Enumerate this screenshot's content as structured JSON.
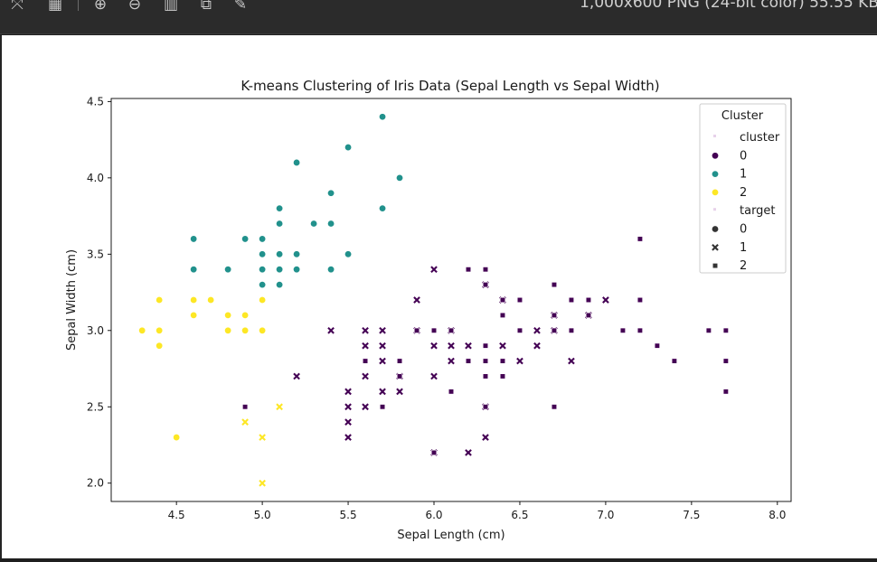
{
  "viewer": {
    "image_info": "1,000x600 PNG (24-bit color) 55.55 KB",
    "tools": [
      {
        "icon": "fit-window-icon",
        "glyph": "⤧"
      },
      {
        "icon": "grid-icon",
        "glyph": "▦"
      },
      {
        "icon": "zoom-in-icon",
        "glyph": "⊕"
      },
      {
        "icon": "zoom-out-icon",
        "glyph": "⊖"
      },
      {
        "icon": "histogram-icon",
        "glyph": "▥"
      },
      {
        "icon": "crop-icon",
        "glyph": "⧉"
      },
      {
        "icon": "edit-pencil-icon",
        "glyph": "✎"
      }
    ]
  },
  "chart_data": {
    "type": "scatter",
    "title": "K-means Clustering of Iris Data (Sepal Length vs Sepal Width)",
    "xlabel": "Sepal Length (cm)",
    "ylabel": "Sepal Width (cm)",
    "xlim": [
      4.12,
      8.08
    ],
    "ylim": [
      1.88,
      4.52
    ],
    "xticks": [
      "4.5",
      "5.0",
      "5.5",
      "6.0",
      "6.5",
      "7.0",
      "7.5",
      "8.0"
    ],
    "yticks": [
      "2.0",
      "2.5",
      "3.0",
      "3.5",
      "4.0",
      "4.5"
    ],
    "grid": false,
    "legend": {
      "title": "Cluster",
      "placement": "top-right",
      "entries": [
        {
          "kind": "header",
          "label": "cluster"
        },
        {
          "kind": "hue",
          "label": "0",
          "color": "#440154"
        },
        {
          "kind": "hue",
          "label": "1",
          "color": "#21918c"
        },
        {
          "kind": "hue",
          "label": "2",
          "color": "#fde725"
        },
        {
          "kind": "header",
          "label": "target"
        },
        {
          "kind": "style",
          "label": "0",
          "marker": "circle"
        },
        {
          "kind": "style",
          "label": "1",
          "marker": "x"
        },
        {
          "kind": "style",
          "label": "2",
          "marker": "square"
        }
      ]
    },
    "cluster_colors": {
      "0": "#440154",
      "1": "#21918c",
      "2": "#fde725"
    },
    "series": [
      {
        "cluster": 1,
        "target": 0,
        "points": [
          [
            5.7,
            4.4
          ],
          [
            5.5,
            4.2
          ],
          [
            5.2,
            4.1
          ],
          [
            5.8,
            4.0
          ],
          [
            5.4,
            3.9
          ],
          [
            5.1,
            3.8
          ],
          [
            5.7,
            3.8
          ],
          [
            5.1,
            3.7
          ],
          [
            5.3,
            3.7
          ],
          [
            5.4,
            3.7
          ],
          [
            4.6,
            3.6
          ],
          [
            4.9,
            3.6
          ],
          [
            5.0,
            3.6
          ],
          [
            5.0,
            3.5
          ],
          [
            5.1,
            3.5
          ],
          [
            5.2,
            3.5
          ],
          [
            5.5,
            3.5
          ],
          [
            4.6,
            3.4
          ],
          [
            4.8,
            3.4
          ],
          [
            5.0,
            3.4
          ],
          [
            5.1,
            3.4
          ],
          [
            5.2,
            3.4
          ],
          [
            5.4,
            3.4
          ],
          [
            5.0,
            3.3
          ],
          [
            5.1,
            3.3
          ]
        ]
      },
      {
        "cluster": 2,
        "target": 0,
        "points": [
          [
            4.4,
            3.2
          ],
          [
            4.6,
            3.2
          ],
          [
            4.7,
            3.2
          ],
          [
            5.0,
            3.2
          ],
          [
            4.6,
            3.1
          ],
          [
            4.8,
            3.1
          ],
          [
            4.9,
            3.1
          ],
          [
            4.3,
            3.0
          ],
          [
            4.4,
            3.0
          ],
          [
            4.8,
            3.0
          ],
          [
            4.9,
            3.0
          ],
          [
            5.0,
            3.0
          ],
          [
            4.4,
            2.9
          ],
          [
            4.5,
            2.3
          ]
        ]
      },
      {
        "cluster": 2,
        "target": 1,
        "points": [
          [
            5.1,
            2.5
          ],
          [
            4.9,
            2.4
          ],
          [
            5.0,
            2.3
          ],
          [
            5.0,
            2.0
          ]
        ]
      },
      {
        "cluster": 0,
        "target": 1,
        "points": [
          [
            6.0,
            3.4
          ],
          [
            6.3,
            3.3
          ],
          [
            5.9,
            3.2
          ],
          [
            6.4,
            3.2
          ],
          [
            6.7,
            3.1
          ],
          [
            6.9,
            3.1
          ],
          [
            7.0,
            3.2
          ],
          [
            5.4,
            3.0
          ],
          [
            5.6,
            3.0
          ],
          [
            5.7,
            3.0
          ],
          [
            5.9,
            3.0
          ],
          [
            6.1,
            3.0
          ],
          [
            6.6,
            3.0
          ],
          [
            6.7,
            3.0
          ],
          [
            5.6,
            2.9
          ],
          [
            5.7,
            2.9
          ],
          [
            6.0,
            2.9
          ],
          [
            6.1,
            2.9
          ],
          [
            6.2,
            2.9
          ],
          [
            6.4,
            2.9
          ],
          [
            6.6,
            2.9
          ],
          [
            5.7,
            2.8
          ],
          [
            6.1,
            2.8
          ],
          [
            6.5,
            2.8
          ],
          [
            6.8,
            2.8
          ],
          [
            5.2,
            2.7
          ],
          [
            5.6,
            2.7
          ],
          [
            5.8,
            2.7
          ],
          [
            6.0,
            2.7
          ],
          [
            6.3,
            2.5
          ],
          [
            5.5,
            2.6
          ],
          [
            5.7,
            2.6
          ],
          [
            5.8,
            2.6
          ],
          [
            5.5,
            2.5
          ],
          [
            5.6,
            2.5
          ],
          [
            5.5,
            2.4
          ],
          [
            5.5,
            2.3
          ],
          [
            6.3,
            2.3
          ],
          [
            6.0,
            2.2
          ],
          [
            6.2,
            2.2
          ]
        ]
      },
      {
        "cluster": 0,
        "target": 2,
        "points": [
          [
            7.2,
            3.6
          ],
          [
            6.2,
            3.4
          ],
          [
            6.3,
            3.4
          ],
          [
            6.3,
            3.3
          ],
          [
            6.7,
            3.3
          ],
          [
            6.4,
            3.2
          ],
          [
            6.5,
            3.2
          ],
          [
            6.8,
            3.2
          ],
          [
            6.9,
            3.2
          ],
          [
            7.2,
            3.2
          ],
          [
            6.4,
            3.1
          ],
          [
            6.7,
            3.1
          ],
          [
            6.9,
            3.1
          ],
          [
            5.9,
            3.0
          ],
          [
            6.0,
            3.0
          ],
          [
            6.1,
            3.0
          ],
          [
            6.5,
            3.0
          ],
          [
            6.7,
            3.0
          ],
          [
            6.8,
            3.0
          ],
          [
            7.1,
            3.0
          ],
          [
            7.2,
            3.0
          ],
          [
            7.6,
            3.0
          ],
          [
            7.7,
            3.0
          ],
          [
            6.3,
            2.9
          ],
          [
            7.3,
            2.9
          ],
          [
            5.8,
            2.8
          ],
          [
            6.2,
            2.8
          ],
          [
            6.3,
            2.8
          ],
          [
            6.4,
            2.8
          ],
          [
            7.4,
            2.8
          ],
          [
            7.7,
            2.8
          ],
          [
            5.8,
            2.7
          ],
          [
            6.3,
            2.7
          ],
          [
            6.4,
            2.7
          ],
          [
            6.1,
            2.6
          ],
          [
            7.7,
            2.6
          ],
          [
            4.9,
            2.5
          ],
          [
            5.6,
            2.8
          ],
          [
            5.7,
            2.5
          ],
          [
            6.3,
            2.5
          ],
          [
            6.7,
            2.5
          ],
          [
            6.0,
            2.2
          ]
        ]
      }
    ]
  }
}
